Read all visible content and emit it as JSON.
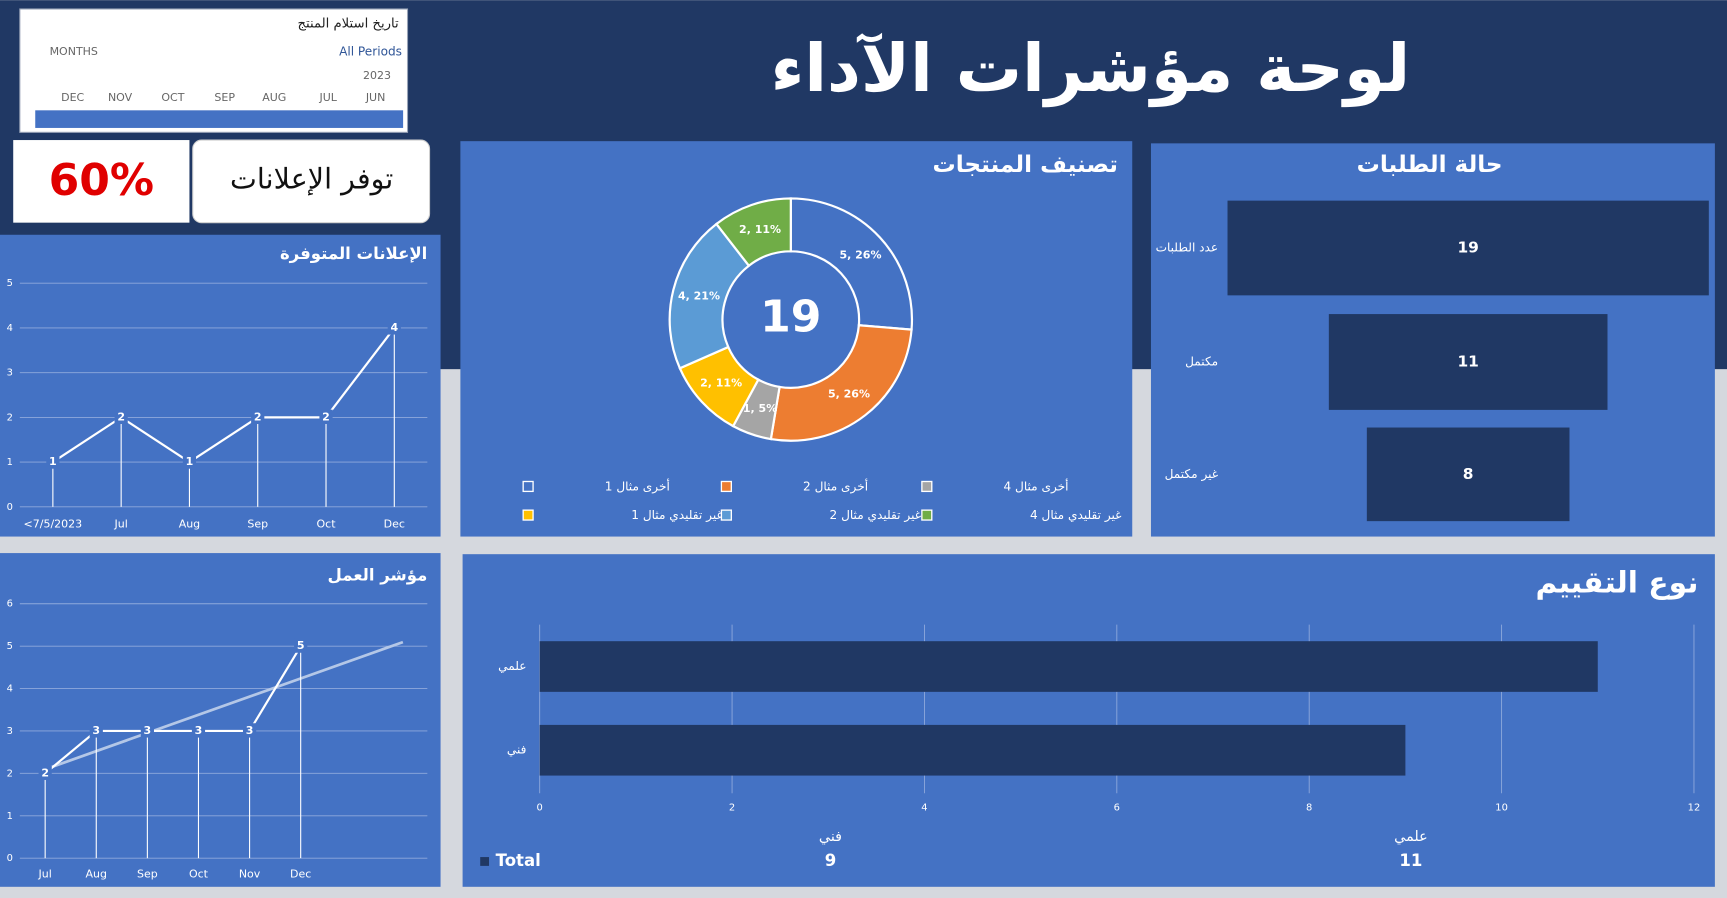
{
  "header": {
    "title": "لوحة مؤشرات الآداء"
  },
  "slicer": {
    "title": "تاريخ استلام المنتج",
    "level": "MONTHS",
    "selection": "All Periods",
    "year": "2023",
    "months": [
      "DEC",
      "NOV",
      "OCT",
      "SEP",
      "AUG",
      "JUL",
      "JUN"
    ]
  },
  "kpi": {
    "label": "توفر الإعلانات",
    "value": "60%"
  },
  "chart_data": [
    {
      "type": "line",
      "title": "الإعلانات المتوفرة",
      "categories": [
        "<7/5/2023",
        "Jul",
        "Aug",
        "Sep",
        "Oct",
        "Dec"
      ],
      "values": [
        1,
        2,
        1,
        2,
        2,
        4
      ],
      "color": "#ffffff",
      "ylim": [
        0,
        5
      ],
      "yticks": [
        0,
        1,
        2,
        3,
        4,
        5
      ],
      "grid": true,
      "data_labels": true,
      "drop_lines": true
    },
    {
      "type": "donut",
      "title": "تصنيف المنتجات",
      "total": 19,
      "categories": [
        "أخرى مثال 1",
        "أخرى مثال 2",
        "أخرى مثال 4",
        "غير تقليدي مثال 1",
        "غير تقليدي مثال 2",
        "غير تقليدي مثال 4"
      ],
      "values": [
        5,
        5,
        1,
        2,
        4,
        2
      ],
      "value_labels": [
        "5, 26%",
        "5, 26%",
        "1, 5%",
        "2, 11%",
        "4, 21%",
        "2, 11%"
      ],
      "colors": [
        "#4472c4",
        "#ed7d31",
        "#a5a5a5",
        "#ffc000",
        "#5b9bd5",
        "#70ad47"
      ],
      "legend": "bottom"
    },
    {
      "type": "funnel",
      "title": "حالة الطلبات",
      "categories": [
        "عدد الطلبات",
        "مكتمل",
        "غير مكتمل"
      ],
      "values": [
        19,
        11,
        8
      ],
      "color": "#203864"
    },
    {
      "type": "line",
      "title": "مؤشر العمل",
      "categories": [
        "Jul",
        "Aug",
        "Sep",
        "Oct",
        "Nov",
        "Dec"
      ],
      "values": [
        2,
        3,
        3,
        3,
        3,
        5
      ],
      "color": "#ffffff",
      "ylim": [
        0,
        6
      ],
      "yticks": [
        0,
        1,
        2,
        3,
        4,
        5,
        6
      ],
      "grid": true,
      "data_labels": true,
      "drop_lines": true,
      "trendline": true
    },
    {
      "type": "hbar",
      "title": "نوع التقييم",
      "categories": [
        "علمي",
        "فني"
      ],
      "values": [
        11,
        9
      ],
      "color": "#203864",
      "xlim": [
        0,
        12
      ],
      "xticks": [
        0,
        2,
        4,
        6,
        8,
        10,
        12
      ],
      "grid": true,
      "table": {
        "row_label": "Total",
        "columns": [
          "فني",
          "علمي"
        ],
        "values": [
          9,
          11
        ]
      }
    }
  ]
}
